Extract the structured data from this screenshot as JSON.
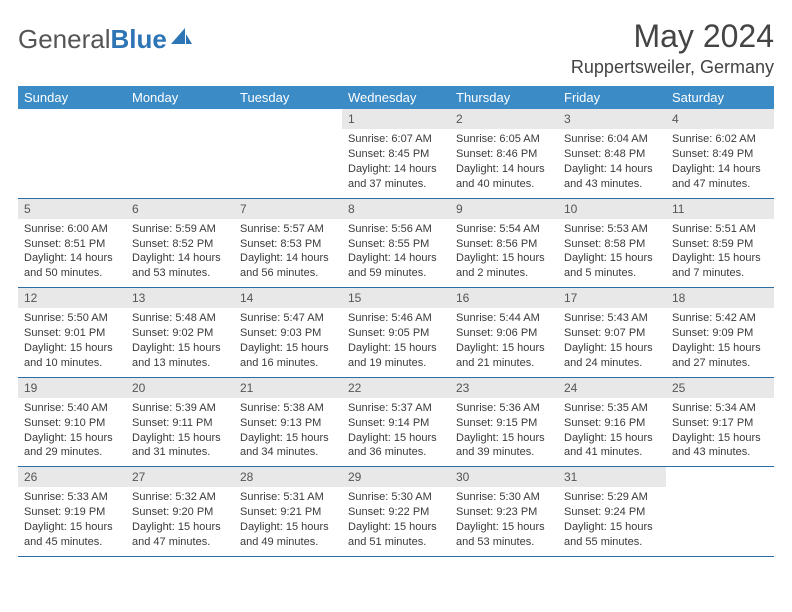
{
  "logo": {
    "text_part1": "General",
    "text_part2": "Blue",
    "accent_color": "#2e75b6"
  },
  "title": "May 2024",
  "location": "Ruppertsweiler, Germany",
  "colors": {
    "header_bg": "#3b8bc6",
    "header_text": "#ffffff",
    "row_border": "#2e6ca4",
    "daynum_bg": "#e8e8e8",
    "text": "#3a3a3a"
  },
  "weekdays": [
    "Sunday",
    "Monday",
    "Tuesday",
    "Wednesday",
    "Thursday",
    "Friday",
    "Saturday"
  ],
  "weeks": [
    [
      {
        "empty": true
      },
      {
        "empty": true
      },
      {
        "empty": true
      },
      {
        "num": "1",
        "sunrise": "Sunrise: 6:07 AM",
        "sunset": "Sunset: 8:45 PM",
        "day1": "Daylight: 14 hours",
        "day2": "and 37 minutes."
      },
      {
        "num": "2",
        "sunrise": "Sunrise: 6:05 AM",
        "sunset": "Sunset: 8:46 PM",
        "day1": "Daylight: 14 hours",
        "day2": "and 40 minutes."
      },
      {
        "num": "3",
        "sunrise": "Sunrise: 6:04 AM",
        "sunset": "Sunset: 8:48 PM",
        "day1": "Daylight: 14 hours",
        "day2": "and 43 minutes."
      },
      {
        "num": "4",
        "sunrise": "Sunrise: 6:02 AM",
        "sunset": "Sunset: 8:49 PM",
        "day1": "Daylight: 14 hours",
        "day2": "and 47 minutes."
      }
    ],
    [
      {
        "num": "5",
        "sunrise": "Sunrise: 6:00 AM",
        "sunset": "Sunset: 8:51 PM",
        "day1": "Daylight: 14 hours",
        "day2": "and 50 minutes."
      },
      {
        "num": "6",
        "sunrise": "Sunrise: 5:59 AM",
        "sunset": "Sunset: 8:52 PM",
        "day1": "Daylight: 14 hours",
        "day2": "and 53 minutes."
      },
      {
        "num": "7",
        "sunrise": "Sunrise: 5:57 AM",
        "sunset": "Sunset: 8:53 PM",
        "day1": "Daylight: 14 hours",
        "day2": "and 56 minutes."
      },
      {
        "num": "8",
        "sunrise": "Sunrise: 5:56 AM",
        "sunset": "Sunset: 8:55 PM",
        "day1": "Daylight: 14 hours",
        "day2": "and 59 minutes."
      },
      {
        "num": "9",
        "sunrise": "Sunrise: 5:54 AM",
        "sunset": "Sunset: 8:56 PM",
        "day1": "Daylight: 15 hours",
        "day2": "and 2 minutes."
      },
      {
        "num": "10",
        "sunrise": "Sunrise: 5:53 AM",
        "sunset": "Sunset: 8:58 PM",
        "day1": "Daylight: 15 hours",
        "day2": "and 5 minutes."
      },
      {
        "num": "11",
        "sunrise": "Sunrise: 5:51 AM",
        "sunset": "Sunset: 8:59 PM",
        "day1": "Daylight: 15 hours",
        "day2": "and 7 minutes."
      }
    ],
    [
      {
        "num": "12",
        "sunrise": "Sunrise: 5:50 AM",
        "sunset": "Sunset: 9:01 PM",
        "day1": "Daylight: 15 hours",
        "day2": "and 10 minutes."
      },
      {
        "num": "13",
        "sunrise": "Sunrise: 5:48 AM",
        "sunset": "Sunset: 9:02 PM",
        "day1": "Daylight: 15 hours",
        "day2": "and 13 minutes."
      },
      {
        "num": "14",
        "sunrise": "Sunrise: 5:47 AM",
        "sunset": "Sunset: 9:03 PM",
        "day1": "Daylight: 15 hours",
        "day2": "and 16 minutes."
      },
      {
        "num": "15",
        "sunrise": "Sunrise: 5:46 AM",
        "sunset": "Sunset: 9:05 PM",
        "day1": "Daylight: 15 hours",
        "day2": "and 19 minutes."
      },
      {
        "num": "16",
        "sunrise": "Sunrise: 5:44 AM",
        "sunset": "Sunset: 9:06 PM",
        "day1": "Daylight: 15 hours",
        "day2": "and 21 minutes."
      },
      {
        "num": "17",
        "sunrise": "Sunrise: 5:43 AM",
        "sunset": "Sunset: 9:07 PM",
        "day1": "Daylight: 15 hours",
        "day2": "and 24 minutes."
      },
      {
        "num": "18",
        "sunrise": "Sunrise: 5:42 AM",
        "sunset": "Sunset: 9:09 PM",
        "day1": "Daylight: 15 hours",
        "day2": "and 27 minutes."
      }
    ],
    [
      {
        "num": "19",
        "sunrise": "Sunrise: 5:40 AM",
        "sunset": "Sunset: 9:10 PM",
        "day1": "Daylight: 15 hours",
        "day2": "and 29 minutes."
      },
      {
        "num": "20",
        "sunrise": "Sunrise: 5:39 AM",
        "sunset": "Sunset: 9:11 PM",
        "day1": "Daylight: 15 hours",
        "day2": "and 31 minutes."
      },
      {
        "num": "21",
        "sunrise": "Sunrise: 5:38 AM",
        "sunset": "Sunset: 9:13 PM",
        "day1": "Daylight: 15 hours",
        "day2": "and 34 minutes."
      },
      {
        "num": "22",
        "sunrise": "Sunrise: 5:37 AM",
        "sunset": "Sunset: 9:14 PM",
        "day1": "Daylight: 15 hours",
        "day2": "and 36 minutes."
      },
      {
        "num": "23",
        "sunrise": "Sunrise: 5:36 AM",
        "sunset": "Sunset: 9:15 PM",
        "day1": "Daylight: 15 hours",
        "day2": "and 39 minutes."
      },
      {
        "num": "24",
        "sunrise": "Sunrise: 5:35 AM",
        "sunset": "Sunset: 9:16 PM",
        "day1": "Daylight: 15 hours",
        "day2": "and 41 minutes."
      },
      {
        "num": "25",
        "sunrise": "Sunrise: 5:34 AM",
        "sunset": "Sunset: 9:17 PM",
        "day1": "Daylight: 15 hours",
        "day2": "and 43 minutes."
      }
    ],
    [
      {
        "num": "26",
        "sunrise": "Sunrise: 5:33 AM",
        "sunset": "Sunset: 9:19 PM",
        "day1": "Daylight: 15 hours",
        "day2": "and 45 minutes."
      },
      {
        "num": "27",
        "sunrise": "Sunrise: 5:32 AM",
        "sunset": "Sunset: 9:20 PM",
        "day1": "Daylight: 15 hours",
        "day2": "and 47 minutes."
      },
      {
        "num": "28",
        "sunrise": "Sunrise: 5:31 AM",
        "sunset": "Sunset: 9:21 PM",
        "day1": "Daylight: 15 hours",
        "day2": "and 49 minutes."
      },
      {
        "num": "29",
        "sunrise": "Sunrise: 5:30 AM",
        "sunset": "Sunset: 9:22 PM",
        "day1": "Daylight: 15 hours",
        "day2": "and 51 minutes."
      },
      {
        "num": "30",
        "sunrise": "Sunrise: 5:30 AM",
        "sunset": "Sunset: 9:23 PM",
        "day1": "Daylight: 15 hours",
        "day2": "and 53 minutes."
      },
      {
        "num": "31",
        "sunrise": "Sunrise: 5:29 AM",
        "sunset": "Sunset: 9:24 PM",
        "day1": "Daylight: 15 hours",
        "day2": "and 55 minutes."
      },
      {
        "empty": true
      }
    ]
  ]
}
